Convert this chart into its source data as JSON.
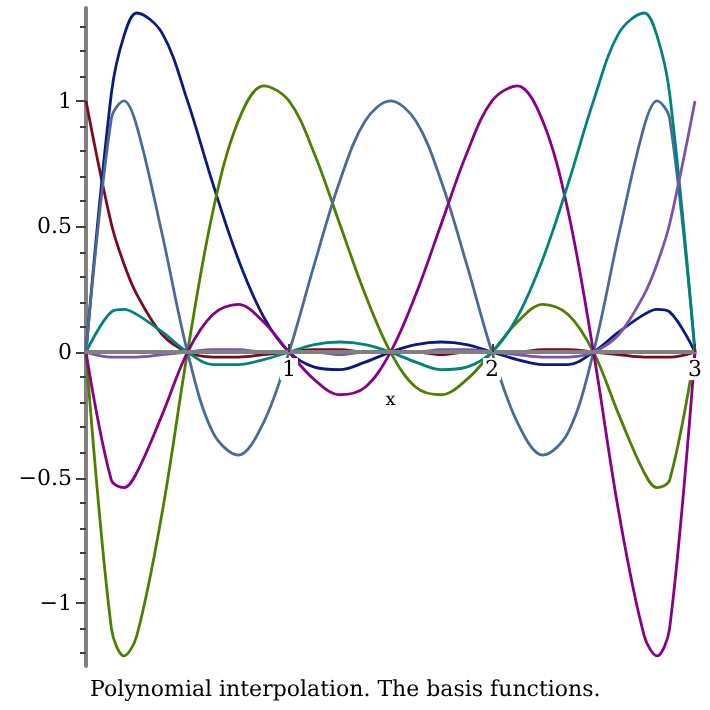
{
  "chart_data": {
    "type": "line",
    "title": "Polynomial interpolation. The basis functions.",
    "xlabel": "x",
    "x": [
      0,
      0.125,
      0.1875,
      0.25,
      0.375,
      0.5,
      0.625,
      0.75,
      0.875,
      1,
      1.125,
      1.25,
      1.375,
      1.5,
      1.625,
      1.75,
      1.875,
      2,
      2.125,
      2.25,
      2.375,
      2.5,
      2.625,
      2.75,
      2.8125,
      2.875,
      3
    ],
    "series": [
      {
        "color": "#7a0a1e",
        "values": [
          1,
          0.51,
          0.35,
          0.23,
          0.07,
          0,
          -0.02,
          -0.02,
          -0.01,
          0,
          0.01,
          0.01,
          0,
          0,
          0,
          -0.01,
          0,
          0,
          0,
          0.01,
          0.01,
          0,
          -0.01,
          -0.02,
          -0.02,
          -0.02,
          0
        ]
      },
      {
        "color": "#0a1a80",
        "values": [
          0,
          1.03,
          1.26,
          1.35,
          1.27,
          1,
          0.67,
          0.37,
          0.14,
          0,
          -0.06,
          -0.07,
          -0.04,
          0,
          0.03,
          0.04,
          0.03,
          0,
          -0.03,
          -0.05,
          -0.05,
          0,
          0.08,
          0.15,
          0.17,
          0.16,
          0
        ]
      },
      {
        "color": "#4d7f00",
        "values": [
          0,
          -1.1,
          -1.21,
          -1.13,
          -0.64,
          0,
          0.56,
          0.92,
          1.06,
          1,
          0.79,
          0.51,
          0.23,
          0,
          -0.14,
          -0.17,
          -0.11,
          0,
          0.12,
          0.19,
          0.15,
          0,
          -0.25,
          -0.48,
          -0.54,
          -0.51,
          0
        ]
      },
      {
        "color": "#4b6a9a",
        "values": [
          0,
          0.93,
          1,
          0.9,
          0.47,
          0,
          -0.32,
          -0.41,
          -0.28,
          0,
          0.35,
          0.68,
          0.92,
          1,
          0.92,
          0.68,
          0.35,
          0,
          -0.28,
          -0.41,
          -0.32,
          0,
          0.47,
          0.9,
          1,
          0.93,
          0
        ]
      },
      {
        "color": "#880088",
        "values": [
          0,
          -0.51,
          -0.54,
          -0.48,
          -0.25,
          0,
          0.15,
          0.19,
          0.12,
          0,
          -0.11,
          -0.17,
          -0.14,
          0,
          0.23,
          0.51,
          0.79,
          1,
          1.06,
          0.92,
          0.56,
          0,
          -0.64,
          -1.13,
          -1.21,
          -1.1,
          0
        ]
      },
      {
        "color": "#00847a",
        "values": [
          0,
          0.16,
          0.17,
          0.15,
          0.08,
          0,
          -0.05,
          -0.05,
          -0.03,
          0,
          0.03,
          0.04,
          0.03,
          0,
          -0.04,
          -0.07,
          -0.06,
          0,
          0.14,
          0.37,
          0.67,
          1,
          1.27,
          1.35,
          1.26,
          1.03,
          0
        ]
      },
      {
        "color": "#7b52ae",
        "values": [
          0,
          -0.02,
          -0.02,
          -0.02,
          -0.01,
          0,
          0.01,
          0.01,
          0,
          0,
          0,
          -0.01,
          0,
          0,
          0,
          0.01,
          0.01,
          0,
          -0.01,
          -0.02,
          -0.02,
          0,
          0.07,
          0.23,
          0.35,
          0.51,
          1
        ]
      }
    ],
    "xlim": [
      0,
      3
    ],
    "xticks": [
      1,
      2,
      3
    ],
    "ylim": [
      -1.25,
      1.37
    ],
    "yticks": [
      {
        "value": -1,
        "label": "−1"
      },
      {
        "value": -0.5,
        "label": "−0.5"
      },
      0,
      0.5,
      1
    ]
  }
}
